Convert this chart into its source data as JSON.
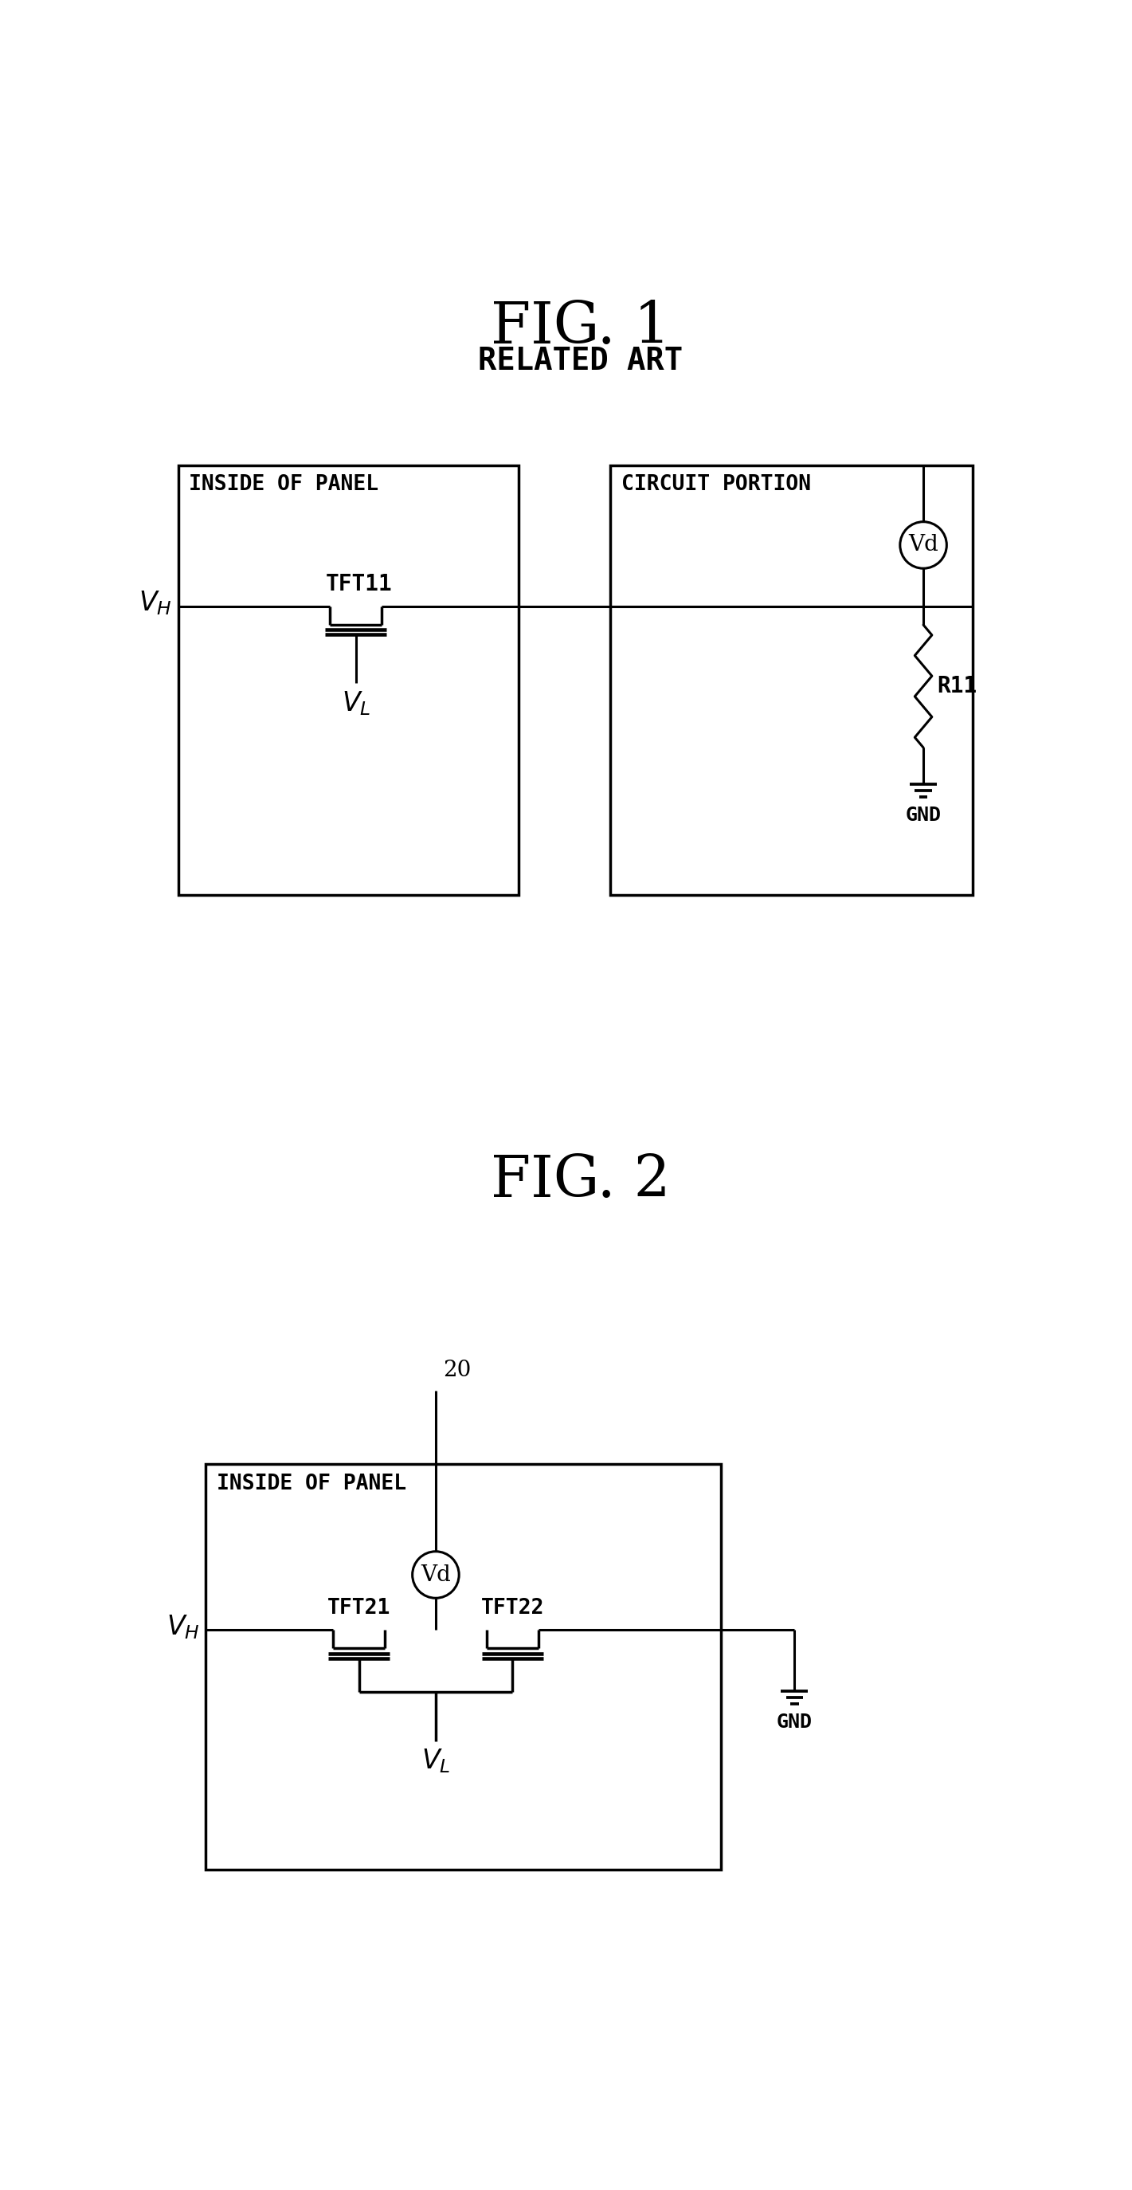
{
  "fig1_title": "FIG. 1",
  "fig1_subtitle": "RELATED ART",
  "fig2_title": "FIG. 2",
  "bg_color": "#ffffff",
  "panel1_label": "INSIDE OF PANEL",
  "panel2_label": "CIRCUIT PORTION",
  "tft11_label": "TFT11",
  "vd_label": "Vd",
  "r11_label": "R11",
  "gnd_label": "GND",
  "panel3_label": "INSIDE OF PANEL",
  "tft21_label": "TFT21",
  "tft22_label": "TFT22",
  "node20_label": "20",
  "gnd2_label": "GND"
}
